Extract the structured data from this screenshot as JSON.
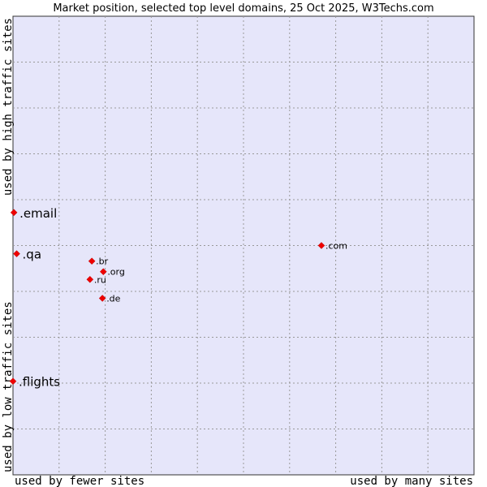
{
  "chart_data": {
    "type": "scatter",
    "title": "Market position, selected top level domains, 25 Oct 2025, W3Techs.com",
    "xlabel_left": "used by fewer sites",
    "xlabel_right": "used by many sites",
    "ylabel_bottom": "used by low traffic sites",
    "ylabel_top": "used by high traffic sites",
    "xlim": [
      0,
      100
    ],
    "ylim": [
      0,
      100
    ],
    "grid": true,
    "points": [
      {
        "label": ".email",
        "x": 0.2,
        "y": 57.2,
        "size": "big"
      },
      {
        "label": ".qa",
        "x": 0.8,
        "y": 48.2,
        "size": "big"
      },
      {
        "label": ".flights",
        "x": 0.0,
        "y": 20.4,
        "size": "big"
      },
      {
        "label": ".com",
        "x": 66.9,
        "y": 50.0,
        "size": "small"
      },
      {
        "label": ".br",
        "x": 17.1,
        "y": 46.6,
        "size": "small"
      },
      {
        "label": ".org",
        "x": 19.6,
        "y": 44.3,
        "size": "small"
      },
      {
        "label": ".ru",
        "x": 16.7,
        "y": 42.6,
        "size": "small"
      },
      {
        "label": ".de",
        "x": 19.4,
        "y": 38.5,
        "size": "small"
      }
    ]
  }
}
